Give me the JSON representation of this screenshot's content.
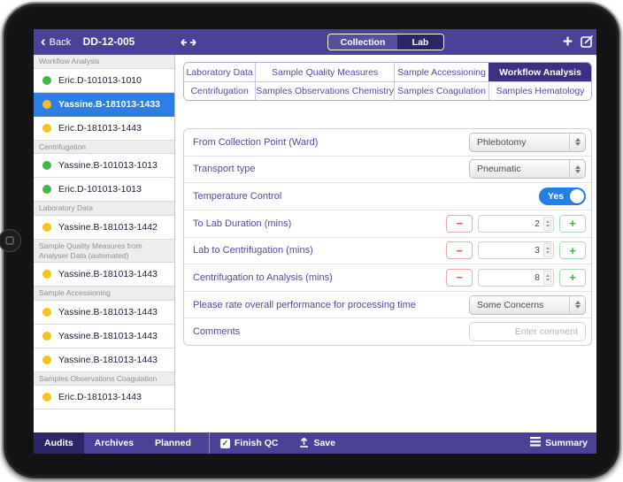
{
  "header": {
    "back_label": "Back",
    "title": "DD-12-005",
    "segments": [
      {
        "label": "Collection",
        "active": false
      },
      {
        "label": "Lab",
        "active": true
      }
    ],
    "icons": [
      "plus-icon",
      "compose-icon",
      "resize-horizontal-icon"
    ]
  },
  "sidebar": {
    "sections": [
      {
        "title": "Workflow Analysis",
        "items": [
          {
            "label": "Eric.D-101013-1010",
            "dot": "green",
            "selected": false
          },
          {
            "label": "Yassine.B-181013-1433",
            "dot": "yellow",
            "selected": true
          },
          {
            "label": "Eric.D-181013-1443",
            "dot": "yellow",
            "selected": false
          }
        ]
      },
      {
        "title": "Centrifugation",
        "items": [
          {
            "label": "Yassine.B-101013-1013",
            "dot": "green",
            "selected": false
          },
          {
            "label": "Eric.D-101013-1013",
            "dot": "green",
            "selected": false
          }
        ]
      },
      {
        "title": "Laboratory Data",
        "items": [
          {
            "label": "Yassine.B-181013-1442",
            "dot": "yellow",
            "selected": false
          }
        ]
      },
      {
        "title": "Sample Quality Measures from Analyser Data (automated)",
        "items": [
          {
            "label": "Yassine.B-181013-1443",
            "dot": "yellow",
            "selected": false
          }
        ]
      },
      {
        "title": "Sample Accessioning",
        "items": [
          {
            "label": "Yassine.B-181013-1443",
            "dot": "yellow",
            "selected": false
          },
          {
            "label": "Yassine.B-181013-1443",
            "dot": "yellow",
            "selected": false
          },
          {
            "label": "Yassine.B-181013-1443",
            "dot": "yellow",
            "selected": false
          }
        ]
      },
      {
        "title": "Samples Observations Coagulation",
        "items": [
          {
            "label": "Eric.D-181013-1443",
            "dot": "yellow",
            "selected": false
          }
        ]
      }
    ]
  },
  "tabs": {
    "cells": [
      {
        "label": "Laboratory Data",
        "active": false
      },
      {
        "label": "Sample Quality Measures",
        "active": false
      },
      {
        "label": "Sample Accessioning",
        "active": false
      },
      {
        "label": "Workflow Analysis",
        "active": true
      },
      {
        "label": "Centrifugation",
        "active": false
      },
      {
        "label": "Samples Observations Chemistry",
        "active": false
      },
      {
        "label": "Samples Coagulation",
        "active": false
      },
      {
        "label": "Samples Hematology",
        "active": false
      }
    ]
  },
  "form": {
    "rows": [
      {
        "label": "From Collection Point (Ward)",
        "type": "select",
        "value": "Phlebotomy"
      },
      {
        "label": "Transport type",
        "type": "select",
        "value": "Pneumatic"
      },
      {
        "label": "Temperature Control",
        "type": "toggle",
        "value": "Yes"
      },
      {
        "label": "To Lab Duration (mins)",
        "type": "stepper",
        "value": "2"
      },
      {
        "label": "Lab to Centrifugation (mins)",
        "type": "stepper",
        "value": "3"
      },
      {
        "label": "Centrifugation to Analysis (mins)",
        "type": "stepper",
        "value": "8"
      },
      {
        "label": "Please rate overall performance for processing time",
        "type": "select",
        "value": "Some Concerns"
      },
      {
        "label": "Comments",
        "type": "text",
        "value": "",
        "placeholder": "Enter comment"
      }
    ]
  },
  "footer": {
    "tabs": [
      {
        "label": "Audits",
        "active": true
      },
      {
        "label": "Archives",
        "active": false
      },
      {
        "label": "Planned",
        "active": false
      }
    ],
    "actions": [
      {
        "label": "Finish QC",
        "icon": "checkbox-checked-icon"
      },
      {
        "label": "Save",
        "icon": "upload-icon"
      }
    ],
    "summary_label": "Summary"
  },
  "colors": {
    "accent_purple": "#4a4297",
    "dark_navy": "#2b2664",
    "tab_active": "#3a3184",
    "selected_row_blue": "#2f7ce2",
    "toggle_blue": "#2380e8",
    "status_green": "#44b549",
    "status_yellow": "#f2c31d",
    "minus_red": "#e2574c",
    "plus_green": "#3bb54a",
    "label_indigo": "#4e4a9e"
  }
}
